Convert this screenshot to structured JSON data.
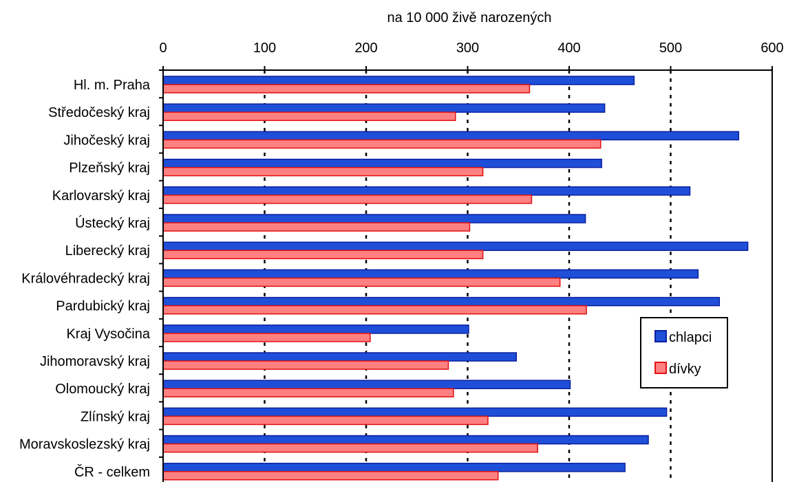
{
  "chart_data": {
    "type": "bar",
    "orientation": "horizontal",
    "xlabel": "na 10 000 živě narozených",
    "xlim": [
      0,
      600
    ],
    "xticks": [
      "0",
      "100",
      "200",
      "300",
      "400",
      "500",
      "600"
    ],
    "categories": [
      "Hl. m. Praha",
      "Středočeský kraj",
      "Jihočeský kraj",
      "Plzeňský kraj",
      "Karlovarský kraj",
      "Ústecký kraj",
      "Liberecký kraj",
      "Královéhradecký kraj",
      "Pardubický kraj",
      "Kraj Vysočina",
      "Jihomoravský kraj",
      "Olomoucký kraj",
      "Zlínský kraj",
      "Moravskoslezský kraj",
      "ČR - celkem"
    ],
    "series": [
      {
        "name": "chlapci",
        "color": "#1f4fd8",
        "border": "#0a1f9e",
        "values": [
          464,
          435,
          567,
          432,
          519,
          416,
          576,
          527,
          548,
          301,
          348,
          401,
          496,
          478,
          455
        ]
      },
      {
        "name": "dívky",
        "color": "#ff8080",
        "border": "#e01010",
        "values": [
          361,
          288,
          431,
          315,
          363,
          302,
          315,
          391,
          417,
          204,
          281,
          286,
          320,
          369,
          330
        ]
      }
    ],
    "grid": "vertical dashed at major ticks",
    "legend_position": "right"
  }
}
